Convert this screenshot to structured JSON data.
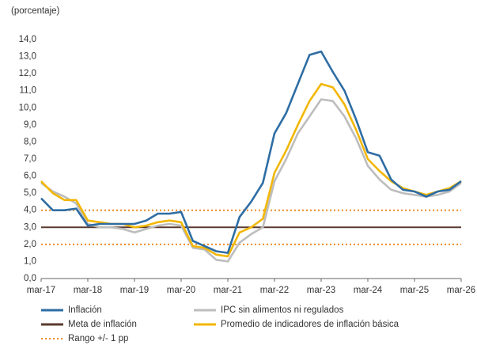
{
  "chart_data": {
    "type": "line",
    "subtitle": "(porcentaje)",
    "categories": [
      "mar-17",
      null,
      null,
      null,
      "mar-18",
      null,
      null,
      null,
      "mar-19",
      null,
      null,
      null,
      "mar-20",
      null,
      null,
      null,
      "mar-21",
      null,
      null,
      null,
      "mar-22",
      null,
      null,
      null,
      "mar-23",
      null,
      null,
      null,
      "mar-24",
      null,
      null,
      null,
      "mar-25",
      null,
      null,
      null,
      "mar-26"
    ],
    "ylim": [
      0,
      14
    ],
    "yticks": [
      {
        "value": 0,
        "label": "0,0"
      },
      {
        "value": 1,
        "label": "1,0"
      },
      {
        "value": 2,
        "label": "2,0"
      },
      {
        "value": 3,
        "label": "3,0"
      },
      {
        "value": 4,
        "label": "4,0"
      },
      {
        "value": 5,
        "label": "5,0"
      },
      {
        "value": 6,
        "label": "6,0"
      },
      {
        "value": 7,
        "label": "7,0"
      },
      {
        "value": 8,
        "label": "8,0"
      },
      {
        "value": 9,
        "label": "9,0"
      },
      {
        "value": 10,
        "label": "10,0"
      },
      {
        "value": 11,
        "label": "11,0"
      },
      {
        "value": 12,
        "label": "12,0"
      },
      {
        "value": 13,
        "label": "13,0"
      },
      {
        "value": 14,
        "label": "14,0"
      }
    ],
    "series": [
      {
        "name": "Inflación",
        "color": "#2e6da4",
        "values": [
          4.7,
          4.0,
          4.0,
          4.1,
          3.1,
          3.2,
          3.2,
          3.2,
          3.2,
          3.4,
          3.8,
          3.8,
          3.9,
          2.2,
          1.9,
          1.6,
          1.5,
          3.6,
          4.5,
          5.6,
          8.5,
          9.7,
          11.4,
          13.1,
          13.3,
          12.1,
          11.0,
          9.3,
          7.4,
          7.2,
          5.8,
          5.2,
          5.1,
          4.8,
          5.1,
          5.2,
          5.7
        ]
      },
      {
        "name": "IPC sin alimentos ni regulados",
        "color": "#bdbdbd",
        "values": [
          5.6,
          5.1,
          4.8,
          4.4,
          3.2,
          3.0,
          3.0,
          2.9,
          2.7,
          2.9,
          3.1,
          3.2,
          3.1,
          1.8,
          1.7,
          1.1,
          1.0,
          2.1,
          2.6,
          3.0,
          5.7,
          7.0,
          8.5,
          9.5,
          10.5,
          10.4,
          9.5,
          8.2,
          6.6,
          5.8,
          5.2,
          5.0,
          4.9,
          4.8,
          4.9,
          5.1,
          5.6
        ]
      },
      {
        "name": "Promedio de indicadores de inflación básica",
        "color": "#f2b705",
        "values": [
          5.7,
          5.0,
          4.6,
          4.6,
          3.4,
          3.3,
          3.2,
          3.2,
          3.0,
          3.1,
          3.3,
          3.4,
          3.3,
          1.9,
          1.8,
          1.4,
          1.3,
          2.7,
          3.0,
          3.5,
          6.2,
          7.5,
          9.0,
          10.4,
          11.4,
          11.2,
          10.2,
          8.7,
          7.0,
          6.3,
          5.7,
          5.3,
          5.1,
          4.9,
          5.1,
          5.3,
          5.7
        ]
      }
    ],
    "reference_lines": [
      {
        "name": "Meta de inflación",
        "color": "#5a3a2e",
        "values": [
          3
        ]
      },
      {
        "name": "Rango +/- 1 pp",
        "color": "#f08a24",
        "values": [
          2,
          4
        ],
        "dotted": true
      }
    ]
  }
}
